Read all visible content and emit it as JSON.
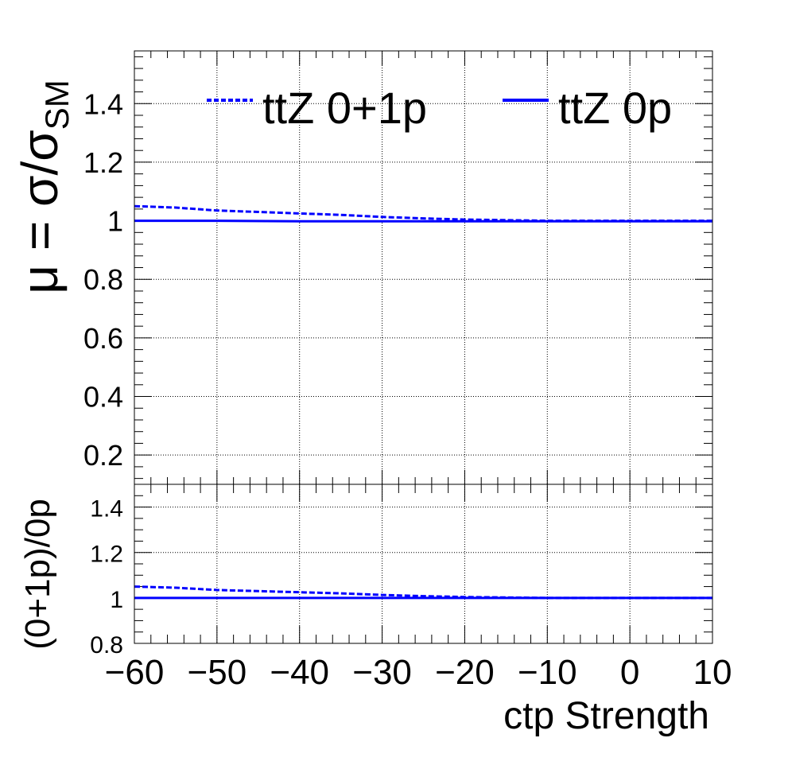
{
  "chart_data": [
    {
      "type": "line",
      "panel": "main",
      "ylabel": "μ = σ/σSM",
      "ylabel_parts": {
        "main": "μ = σ/σ",
        "sub": "SM"
      },
      "xlim": [
        -60,
        10
      ],
      "ylim": [
        0.1,
        1.58
      ],
      "yticks": [
        0.2,
        0.4,
        0.6,
        0.8,
        1,
        1.2,
        1.4
      ],
      "ytick_labels": [
        "0.2",
        "0.4",
        "0.6",
        "0.8",
        "1",
        "1.2",
        "1.4"
      ],
      "grid": true,
      "legend": {
        "placement": "top",
        "entries": [
          "ttZ 0+1p",
          "ttZ 0p"
        ]
      },
      "series": [
        {
          "name": "ttZ 0+1p",
          "style": "dashed",
          "color": "#0000ff",
          "x": [
            -60,
            -55,
            -50,
            -45,
            -40,
            -35,
            -30,
            -25,
            -20,
            -15,
            -10,
            -5,
            0,
            5,
            10
          ],
          "values": [
            1.05,
            1.045,
            1.035,
            1.03,
            1.025,
            1.02,
            1.013,
            1.008,
            1.004,
            1.002,
            1.0,
            1.0,
            1.0,
            1.0,
            1.0
          ]
        },
        {
          "name": "ttZ 0p",
          "style": "solid",
          "color": "#0000ff",
          "x": [
            -60,
            -50,
            -40,
            -30,
            -20,
            -10,
            0,
            10
          ],
          "values": [
            1.0,
            1.0,
            0.998,
            0.998,
            0.998,
            0.998,
            0.998,
            0.998
          ]
        }
      ]
    },
    {
      "type": "line",
      "panel": "ratio",
      "ylabel": "(0+1p)/0p",
      "xlabel": "ctp Strength",
      "xlim": [
        -60,
        10
      ],
      "ylim": [
        0.8,
        1.5
      ],
      "xticks": [
        -60,
        -50,
        -40,
        -30,
        -20,
        -10,
        0,
        10
      ],
      "xtick_labels": [
        "−60",
        "−50",
        "−40",
        "−30",
        "−20",
        "−10",
        "0",
        "10"
      ],
      "yticks": [
        0.8,
        1,
        1.2,
        1.4
      ],
      "ytick_labels": [
        "0.8",
        "1",
        "1.2",
        "1.4"
      ],
      "grid": true,
      "series": [
        {
          "name": "ttZ 0+1p",
          "style": "dashed",
          "color": "#0000ff",
          "x": [
            -60,
            -55,
            -50,
            -45,
            -40,
            -35,
            -30,
            -25,
            -20,
            -15,
            -10,
            -5,
            0,
            5,
            10
          ],
          "values": [
            1.05,
            1.045,
            1.035,
            1.03,
            1.025,
            1.02,
            1.013,
            1.008,
            1.004,
            1.002,
            1.0,
            1.0,
            1.0,
            1.0,
            1.0
          ]
        },
        {
          "name": "ttZ 0p",
          "style": "solid",
          "color": "#0000ff",
          "x": [
            -60,
            10
          ],
          "values": [
            1.0,
            1.0
          ]
        }
      ]
    }
  ]
}
